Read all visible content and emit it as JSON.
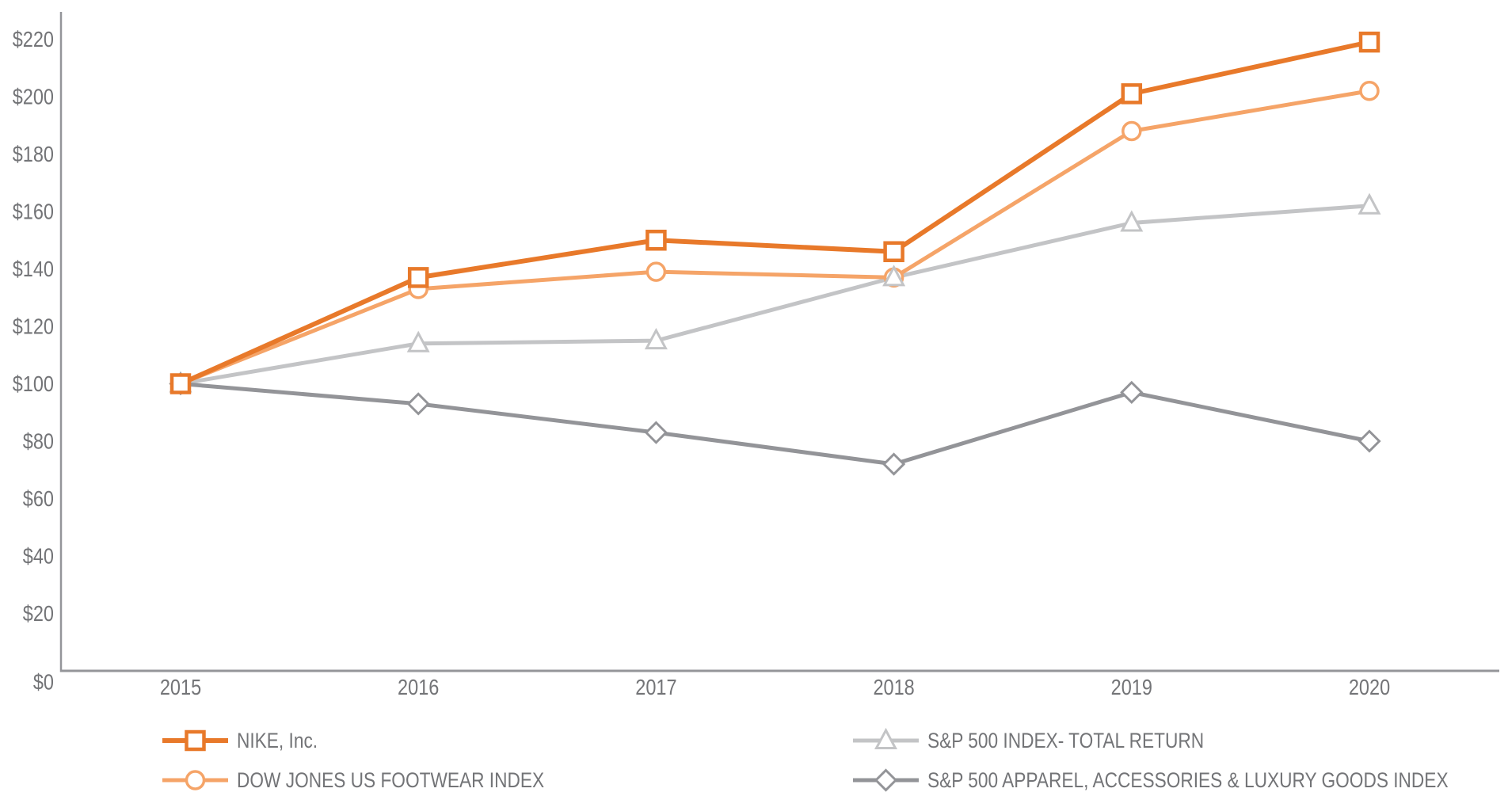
{
  "chart_data": {
    "type": "line",
    "title": "",
    "x_labels": [
      "2015",
      "2016",
      "2017",
      "2018",
      "2019",
      "2020"
    ],
    "y_axis": {
      "prefix": "$",
      "tick_labels": [
        "$0",
        "$20",
        "$40",
        "$60",
        "$80",
        "$100",
        "$120",
        "$140",
        "$160",
        "$180",
        "$200",
        "$220"
      ],
      "tick_values": [
        0,
        20,
        40,
        60,
        80,
        100,
        120,
        140,
        160,
        180,
        200,
        220
      ],
      "range": [
        0,
        220
      ]
    },
    "grid": false,
    "legend_position": "bottom",
    "marker_fill": "#FFFFFF",
    "axis_color": "#949599",
    "text_color": "#737477",
    "series": [
      {
        "name": "NIKE, Inc.",
        "marker": "square",
        "color": "#E8792A",
        "values": [
          100,
          137,
          150,
          146,
          201,
          219
        ]
      },
      {
        "name": "DOW JONES US FOOTWEAR INDEX",
        "marker": "circle",
        "color": "#F5A468",
        "values": [
          100,
          133,
          139,
          137,
          188,
          202
        ]
      },
      {
        "name": "S&P 500 INDEX- TOTAL RETURN",
        "marker": "triangle",
        "color": "#C3C4C6",
        "values": [
          100,
          114,
          115,
          137,
          156,
          162
        ]
      },
      {
        "name": "S&P 500 APPAREL, ACCESSORIES & LUXURY GOODS INDEX",
        "marker": "diamond",
        "color": "#939498",
        "values": [
          100,
          93,
          83,
          72,
          97,
          80
        ]
      }
    ]
  }
}
